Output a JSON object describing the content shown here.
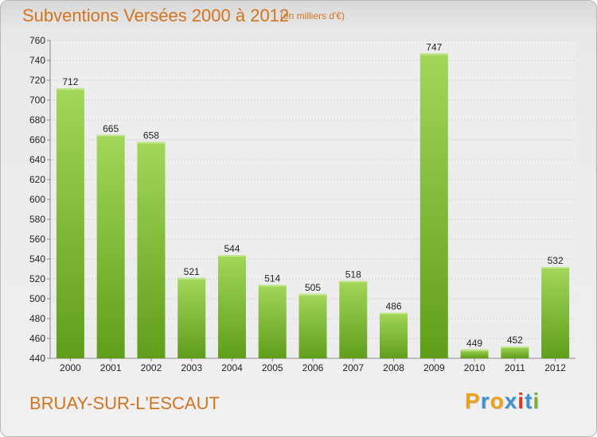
{
  "header": {
    "title": "Subventions Versées 2000 à 2012",
    "subtitle": "(en milliers d'€)"
  },
  "footer": {
    "commune": "BRUAY-SUR-L'ESCAUT",
    "logo_text": "Proxiti",
    "logo_colors": [
      "#e8a21c",
      "#3f8fd2",
      "#e8a21c",
      "#3f8fd2",
      "#d23a2a",
      "#3f8fd2",
      "#7ab32e"
    ]
  },
  "colors": {
    "bar_light": "#a3d65a",
    "bar_dark": "#5f9e1a",
    "title": "#d2731f"
  },
  "chart_data": {
    "type": "bar",
    "title": "Subventions Versées 2000 à 2012",
    "subtitle": "(en milliers d'€)",
    "xlabel": "",
    "ylabel": "",
    "categories": [
      "2000",
      "2001",
      "2002",
      "2003",
      "2004",
      "2005",
      "2006",
      "2007",
      "2008",
      "2009",
      "2010",
      "2011",
      "2012"
    ],
    "values": [
      712,
      665,
      658,
      521,
      544,
      514,
      505,
      518,
      486,
      747,
      449,
      452,
      532
    ],
    "ylim": [
      440,
      760
    ],
    "yticks": [
      440,
      460,
      480,
      500,
      520,
      540,
      560,
      580,
      600,
      620,
      640,
      660,
      680,
      700,
      720,
      740,
      760
    ],
    "grid": true,
    "data_labels": true
  }
}
